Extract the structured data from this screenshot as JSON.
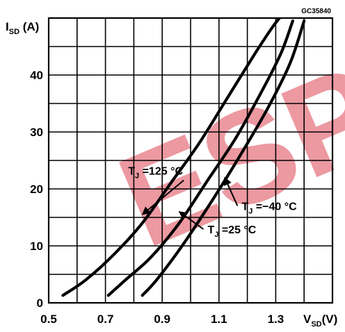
{
  "chart_data": {
    "type": "line",
    "figure_code": "GC35840",
    "xlabel": {
      "main": "V",
      "sub": "SD",
      "unit": "(V)"
    },
    "ylabel": {
      "main": "I",
      "sub": "SD",
      "unit": "(A)"
    },
    "xlim": [
      0.5,
      1.5
    ],
    "ylim": [
      0,
      50
    ],
    "x_ticks": [
      0.5,
      0.7,
      0.9,
      1.1,
      1.3
    ],
    "x_tick_labels": [
      "0.5",
      "0.7",
      "0.9",
      "1.1",
      "1.3"
    ],
    "y_ticks": [
      0,
      10,
      20,
      30,
      40
    ],
    "y_tick_labels": [
      "0",
      "10",
      "20",
      "30",
      "40"
    ],
    "grid": true,
    "grid_step_x": 0.1,
    "grid_step_y": 5,
    "series": [
      {
        "name": "TJ = 125 °C",
        "label": {
          "pre": "T",
          "sub": "J",
          "post": " =125 °C"
        },
        "x": [
          0.55,
          0.63,
          0.73,
          0.83,
          0.93,
          1.03,
          1.13,
          1.23,
          1.29,
          1.33
        ],
        "y": [
          1.3,
          4,
          8.5,
          14,
          21,
          28,
          36,
          44,
          48.5,
          51
        ]
      },
      {
        "name": "TJ = 25 °C",
        "label": {
          "pre": "T",
          "sub": "J",
          "post": " =25 °C"
        },
        "x": [
          0.71,
          0.77,
          0.86,
          0.96,
          1.06,
          1.16,
          1.26,
          1.32,
          1.36
        ],
        "y": [
          1.3,
          4,
          8,
          14,
          21.5,
          29,
          38,
          44,
          49.5
        ]
      },
      {
        "name": "TJ = -40 °C",
        "label": {
          "pre": "T",
          "sub": "J",
          "post": " =−40 °C"
        },
        "x": [
          0.83,
          0.88,
          0.97,
          1.07,
          1.17,
          1.27,
          1.35,
          1.4
        ],
        "y": [
          1.3,
          4,
          10,
          17.5,
          25.5,
          34,
          42,
          49.5
        ]
      }
    ],
    "annotations": [
      {
        "series": "TJ = 125 °C",
        "text_x": 0.78,
        "text_y": 22.5,
        "target_x": 0.83,
        "target_y": 15.5
      },
      {
        "series": "TJ = 25 °C",
        "text_x": 1.06,
        "text_y": 12.2,
        "target_x": 0.96,
        "target_y": 16
      },
      {
        "series": "TJ = -40 °C",
        "text_x": 1.18,
        "text_y": 16.3,
        "target_x": 1.12,
        "target_y": 22
      }
    ],
    "watermark": {
      "text": "ESP",
      "color": "#e8808a"
    }
  }
}
